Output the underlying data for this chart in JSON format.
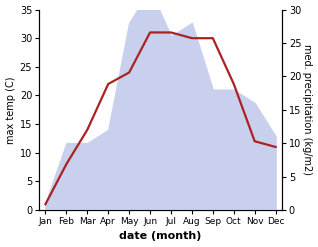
{
  "months": [
    "Jan",
    "Feb",
    "Mar",
    "Apr",
    "May",
    "Jun",
    "Jul",
    "Aug",
    "Sep",
    "Oct",
    "Nov",
    "Dec"
  ],
  "temperature": [
    1,
    8,
    14,
    22,
    24,
    31,
    31,
    30,
    30,
    22,
    12,
    11
  ],
  "precipitation": [
    1,
    10,
    10,
    12,
    28,
    33,
    26,
    28,
    18,
    18,
    16,
    11
  ],
  "temp_color": "#aa2222",
  "precip_color": "#c8d0ee",
  "ylabel_left": "max temp (C)",
  "ylabel_right": "med. precipitation (kg/m2)",
  "xlabel": "date (month)",
  "ylim_left": [
    0,
    35
  ],
  "ylim_right": [
    0,
    30
  ],
  "yticks_left": [
    0,
    5,
    10,
    15,
    20,
    25,
    30,
    35
  ],
  "yticks_right": [
    0,
    5,
    10,
    15,
    20,
    25,
    30
  ],
  "background_color": "#ffffff",
  "line_width": 1.6
}
